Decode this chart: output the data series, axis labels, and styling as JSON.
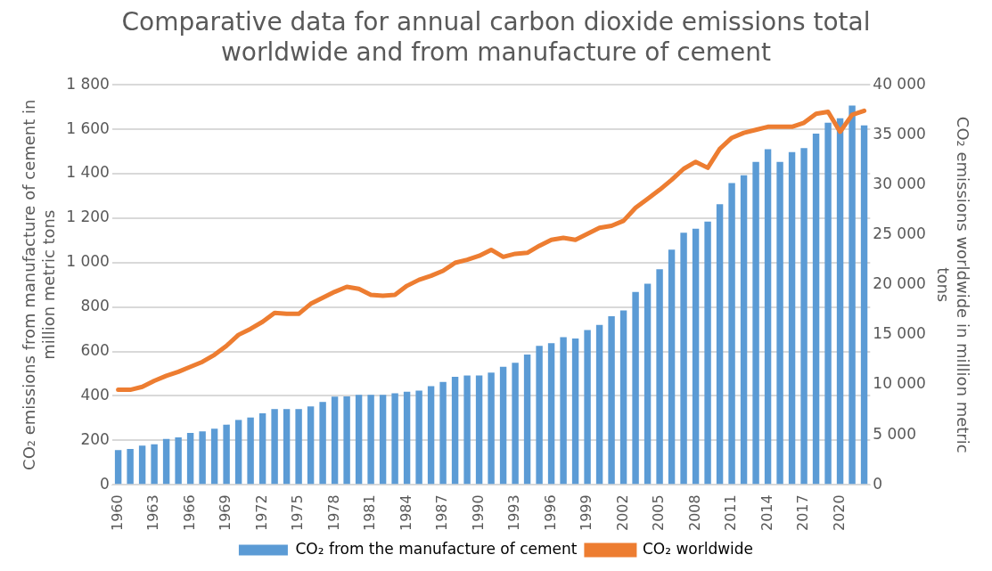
{
  "chart_data": {
    "type": "bar",
    "title": "Comparative data for annual carbon dioxide emissions total worldwide and from manufacture of cement",
    "ylabel": "CO₂ emissions from manufacture of cement in million metric tons",
    "y2label": "CO₂ emissions worldwide in million metric tons",
    "categories": [
      "1960",
      null,
      null,
      "1963",
      null,
      null,
      "1966",
      null,
      null,
      "1969",
      null,
      null,
      "1972",
      null,
      null,
      "1975",
      null,
      null,
      "1978",
      null,
      null,
      "1981",
      null,
      null,
      "1984",
      null,
      null,
      "1987",
      null,
      null,
      "1990",
      null,
      null,
      "1993",
      null,
      null,
      "1996",
      null,
      null,
      "1999",
      null,
      null,
      "2002",
      null,
      null,
      "2005",
      null,
      null,
      "2008",
      null,
      null,
      "2011",
      null,
      null,
      "2014",
      null,
      null,
      "2017",
      null,
      null,
      "2020",
      null,
      null
    ],
    "series": [
      {
        "name": "CO₂ from the manufacture of cement",
        "color": "#5b9bd5",
        "values": [
          156,
          161,
          176,
          183,
          207,
          214,
          234,
          241,
          253,
          271,
          292,
          303,
          322,
          341,
          341,
          341,
          353,
          373,
          397,
          398,
          405,
          405,
          405,
          412,
          419,
          424,
          444,
          463,
          486,
          492,
          492,
          505,
          531,
          549,
          586,
          625,
          637,
          664,
          658,
          697,
          720,
          759,
          785,
          868,
          905,
          970,
          1058,
          1134,
          1152,
          1185,
          1263,
          1358,
          1393,
          1453,
          1510,
          1453,
          1497,
          1515,
          1580,
          1629,
          1649,
          1707,
          1617
        ]
      },
      {
        "name": "CO₂ worldwide",
        "type": "line",
        "axis": "y2",
        "color": "#ed7d31",
        "values": [
          9500,
          9500,
          9800,
          10400,
          10900,
          11300,
          11800,
          12300,
          13000,
          13900,
          15000,
          15600,
          16300,
          17200,
          17100,
          17100,
          18100,
          18700,
          19300,
          19800,
          19600,
          19000,
          18900,
          19000,
          19900,
          20500,
          20900,
          21400,
          22200,
          22500,
          22900,
          23500,
          22800,
          23100,
          23200,
          23900,
          24500,
          24700,
          24500,
          25100,
          25700,
          25900,
          26400,
          27700,
          28600,
          29500,
          30500,
          31600,
          32300,
          31700,
          33600,
          34700,
          35200,
          35500,
          35800,
          35800,
          35800,
          36200,
          37100,
          37300,
          35300,
          37000,
          37400
        ]
      }
    ],
    "ylim": [
      0,
      1800
    ],
    "yticks": [
      0,
      200,
      400,
      600,
      800,
      {
        "value": 1000,
        "label": "1 000"
      },
      {
        "value": 1200,
        "label": "1 200"
      },
      {
        "value": 1400,
        "label": "1 400"
      },
      {
        "value": 1600,
        "label": "1 600"
      },
      {
        "value": 1800,
        "label": "1 800"
      }
    ],
    "y2lim": [
      0,
      40000
    ],
    "y2ticks": [
      0,
      {
        "value": 5000,
        "label": "5 000"
      },
      {
        "value": 10000,
        "label": "10 000"
      },
      {
        "value": 15000,
        "label": "15 000"
      },
      {
        "value": 20000,
        "label": "20 000"
      },
      {
        "value": 25000,
        "label": "25 000"
      },
      {
        "value": 30000,
        "label": "30 000"
      },
      {
        "value": 35000,
        "label": "35 000"
      },
      {
        "value": 40000,
        "label": "40 000"
      }
    ],
    "grid": "y",
    "legend": "bottom",
    "marker": "none"
  }
}
